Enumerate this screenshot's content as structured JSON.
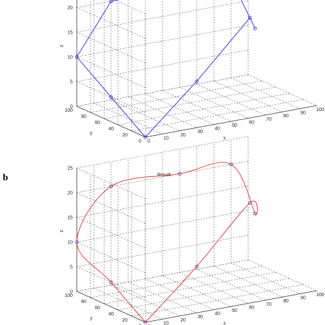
{
  "panels": [
    {
      "label": "",
      "title": "",
      "xlabel": "x",
      "ylabel": "y",
      "zlabel": "z"
    },
    {
      "label": "b",
      "title": "Result",
      "xlabel": "x",
      "ylabel": "y",
      "zlabel": "z"
    }
  ],
  "chart_data": [
    {
      "type": "line",
      "projection": "3d",
      "xlim": [
        0,
        100
      ],
      "ylim": [
        0,
        100
      ],
      "zlim": [
        0,
        25
      ],
      "x_ticks": [
        0,
        10,
        20,
        30,
        40,
        50,
        60,
        70,
        80,
        90,
        100
      ],
      "y_ticks": [
        0,
        20,
        40,
        60,
        80,
        100
      ],
      "z_ticks": [
        0,
        5,
        10,
        15,
        20,
        25
      ],
      "grid": true,
      "series": [
        {
          "style": "polyline",
          "color": "#3b3bd6",
          "marker": "circle",
          "points": [
            {
              "x": 0,
              "y": 0,
              "z": 0
            },
            {
              "x": 50,
              "y": 50,
              "z": 5
            },
            {
              "x": 85,
              "y": 60,
              "z": 15
            },
            {
              "x": 100,
              "y": 90,
              "z": 10
            },
            {
              "x": 90,
              "y": 100,
              "z": 20
            },
            {
              "x": 60,
              "y": 100,
              "z": 20
            },
            {
              "x": 20,
              "y": 100,
              "z": 20
            },
            {
              "x": 0,
              "y": 100,
              "z": 10
            },
            {
              "x": 0,
              "y": 50,
              "z": 5
            },
            {
              "x": 0,
              "y": 0,
              "z": 0
            }
          ]
        }
      ]
    },
    {
      "type": "line",
      "projection": "3d",
      "xlim": [
        0,
        100
      ],
      "ylim": [
        0,
        100
      ],
      "zlim": [
        0,
        25
      ],
      "x_ticks": [
        0,
        10,
        20,
        30,
        40,
        50,
        60,
        70,
        80,
        90,
        100
      ],
      "y_ticks": [
        0,
        20,
        40,
        60,
        80,
        100
      ],
      "z_ticks": [
        0,
        5,
        10,
        15,
        20,
        25
      ],
      "grid": true,
      "series": [
        {
          "style": "smooth",
          "color": "#e23b3b",
          "marker": "circle",
          "points": [
            {
              "x": 0,
              "y": 0,
              "z": 0
            },
            {
              "x": 50,
              "y": 50,
              "z": 5
            },
            {
              "x": 85,
              "y": 60,
              "z": 15
            },
            {
              "x": 100,
              "y": 90,
              "z": 10
            },
            {
              "x": 90,
              "y": 100,
              "z": 20
            },
            {
              "x": 60,
              "y": 100,
              "z": 20
            },
            {
              "x": 20,
              "y": 100,
              "z": 20
            },
            {
              "x": 0,
              "y": 100,
              "z": 10
            },
            {
              "x": 0,
              "y": 50,
              "z": 5
            },
            {
              "x": 0,
              "y": 0,
              "z": 0
            }
          ]
        }
      ]
    }
  ]
}
